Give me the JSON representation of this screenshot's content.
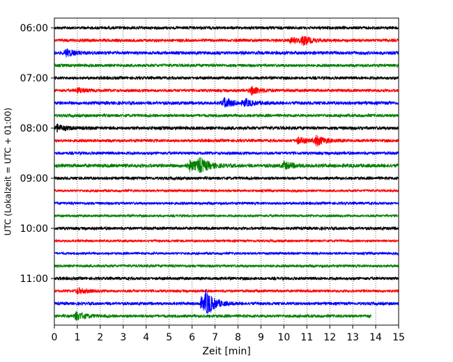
{
  "chart_data": {
    "type": "line",
    "subtype": "helicorder",
    "xlabel": "Zeit  [min]",
    "ylabel": "UTC (Lokalzeit = UTC + 01:00)",
    "xlim": [
      0,
      15
    ],
    "x_ticks": [
      "0",
      "1",
      "2",
      "3",
      "4",
      "5",
      "6",
      "7",
      "8",
      "9",
      "10",
      "11",
      "12",
      "13",
      "14",
      "15"
    ],
    "y_ticks": [
      "06:00",
      "07:00",
      "08:00",
      "09:00",
      "10:00",
      "11:00"
    ],
    "grid": "vertical dotted at each minute",
    "trace_colors": [
      "#000000",
      "#ff0000",
      "#0000ff",
      "#008000"
    ],
    "series": [
      {
        "row_start": "06:00",
        "color": "#000000",
        "amp": 1.0,
        "end_min": 15,
        "events": []
      },
      {
        "row_start": "06:15",
        "color": "#ff0000",
        "amp": 1.0,
        "end_min": 15,
        "events": [
          {
            "t": 10.8,
            "a": 2.5
          },
          {
            "t": 10.3,
            "a": 1.5
          }
        ]
      },
      {
        "row_start": "06:30",
        "color": "#0000ff",
        "amp": 1.1,
        "end_min": 15,
        "events": [
          {
            "t": 0.5,
            "a": 2.0
          }
        ]
      },
      {
        "row_start": "06:45",
        "color": "#008000",
        "amp": 1.0,
        "end_min": 15,
        "events": []
      },
      {
        "row_start": "07:00",
        "color": "#000000",
        "amp": 1.0,
        "end_min": 15,
        "events": []
      },
      {
        "row_start": "07:15",
        "color": "#ff0000",
        "amp": 1.0,
        "end_min": 15,
        "events": [
          {
            "t": 8.6,
            "a": 2.5
          },
          {
            "t": 1.0,
            "a": 1.5
          }
        ]
      },
      {
        "row_start": "07:30",
        "color": "#0000ff",
        "amp": 1.1,
        "end_min": 15,
        "events": [
          {
            "t": 7.4,
            "a": 3.0
          },
          {
            "t": 8.3,
            "a": 1.8
          }
        ]
      },
      {
        "row_start": "07:45",
        "color": "#008000",
        "amp": 1.0,
        "end_min": 15,
        "events": []
      },
      {
        "row_start": "08:00",
        "color": "#000000",
        "amp": 1.1,
        "end_min": 15,
        "events": [
          {
            "t": 0.1,
            "a": 2.0
          }
        ]
      },
      {
        "row_start": "08:15",
        "color": "#ff0000",
        "amp": 1.0,
        "end_min": 15,
        "events": [
          {
            "t": 11.4,
            "a": 3.0
          },
          {
            "t": 10.6,
            "a": 1.8
          }
        ]
      },
      {
        "row_start": "08:30",
        "color": "#0000ff",
        "amp": 1.0,
        "end_min": 15,
        "events": []
      },
      {
        "row_start": "08:45",
        "color": "#008000",
        "amp": 1.2,
        "end_min": 15,
        "events": [
          {
            "t": 5.9,
            "a": 3.0
          },
          {
            "t": 6.3,
            "a": 4.0
          },
          {
            "t": 10.0,
            "a": 2.0
          }
        ]
      },
      {
        "row_start": "09:00",
        "color": "#000000",
        "amp": 1.0,
        "end_min": 15,
        "events": []
      },
      {
        "row_start": "09:15",
        "color": "#ff0000",
        "amp": 0.8,
        "end_min": 15,
        "events": []
      },
      {
        "row_start": "09:30",
        "color": "#0000ff",
        "amp": 0.9,
        "end_min": 15,
        "events": []
      },
      {
        "row_start": "09:45",
        "color": "#008000",
        "amp": 0.8,
        "end_min": 15,
        "events": []
      },
      {
        "row_start": "10:00",
        "color": "#000000",
        "amp": 1.0,
        "end_min": 15,
        "events": []
      },
      {
        "row_start": "10:15",
        "color": "#ff0000",
        "amp": 0.8,
        "end_min": 15,
        "events": []
      },
      {
        "row_start": "10:30",
        "color": "#0000ff",
        "amp": 0.8,
        "end_min": 15,
        "events": []
      },
      {
        "row_start": "10:45",
        "color": "#008000",
        "amp": 0.9,
        "end_min": 15,
        "events": []
      },
      {
        "row_start": "11:00",
        "color": "#000000",
        "amp": 1.0,
        "end_min": 15,
        "events": []
      },
      {
        "row_start": "11:15",
        "color": "#ff0000",
        "amp": 0.9,
        "end_min": 15,
        "events": [
          {
            "t": 1.0,
            "a": 1.8
          }
        ]
      },
      {
        "row_start": "11:30",
        "color": "#0000ff",
        "amp": 1.0,
        "end_min": 15,
        "events": [
          {
            "t": 6.6,
            "a": 6.0
          },
          {
            "t": 6.4,
            "a": 3.0
          }
        ]
      },
      {
        "row_start": "11:45",
        "color": "#008000",
        "amp": 1.0,
        "end_min": 13.8,
        "events": [
          {
            "t": 0.95,
            "a": 2.5
          }
        ]
      }
    ]
  }
}
